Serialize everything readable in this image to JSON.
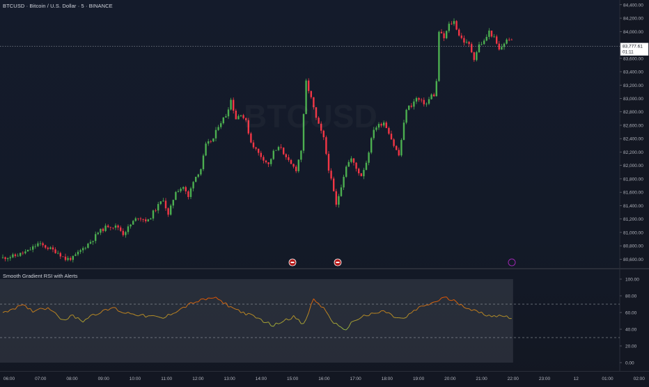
{
  "header": {
    "title": "BTCUSD · Bitcoin / U.S. Dollar · 5 · BINANCE",
    "watermark": "BTCUSD"
  },
  "price_axis": {
    "ticks": [
      "84,400.00",
      "84,200.00",
      "84,000.00",
      "83,600.00",
      "83,400.00",
      "83,200.00",
      "83,000.00",
      "82,800.00",
      "82,600.00",
      "82,400.00",
      "82,200.00",
      "82,000.00",
      "81,800.00",
      "81,600.00",
      "81,400.00",
      "81,200.00",
      "81,000.00",
      "80,800.00",
      "80,600.00"
    ],
    "last_price": "83,777.61",
    "countdown": "01:11"
  },
  "time_axis": {
    "ticks": [
      "06:00",
      "07:00",
      "08:00",
      "09:00",
      "10:00",
      "11:00",
      "12:00",
      "13:00",
      "14:00",
      "15:00",
      "16:00",
      "17:00",
      "18:00",
      "19:00",
      "20:00",
      "21:00",
      "22:00",
      "23:00",
      "12",
      "01:00",
      "02:00"
    ]
  },
  "rsi": {
    "title": "Smooth Gradient RSI with Alerts",
    "ticks": [
      "100.00",
      "80.00",
      "60.00",
      "40.00",
      "20.00",
      "0.00"
    ]
  },
  "colors": {
    "up": "#4caf50",
    "down": "#f23645",
    "rsi_high": "#e65100",
    "rsi_low": "#8bc34a"
  },
  "chart_data": [
    {
      "type": "candlestick",
      "ylim": [
        80500,
        84450
      ],
      "x": [
        "06:00",
        "07:00",
        "08:00",
        "09:00",
        "10:00",
        "11:00",
        "12:00",
        "13:00",
        "14:00",
        "15:00",
        "16:00",
        "17:00",
        "18:00",
        "19:00",
        "20:00",
        "21:00",
        "22:00",
        "23:00"
      ],
      "close_path": [
        [
          0,
          80620
        ],
        [
          5,
          80650
        ],
        [
          10,
          80720
        ],
        [
          14,
          80830
        ],
        [
          18,
          80770
        ],
        [
          22,
          80700
        ],
        [
          25,
          80600
        ],
        [
          28,
          80620
        ],
        [
          32,
          80760
        ],
        [
          36,
          80900
        ],
        [
          38,
          81000
        ],
        [
          42,
          81100
        ],
        [
          46,
          81080
        ],
        [
          48,
          80980
        ],
        [
          52,
          81160
        ],
        [
          54,
          81230
        ],
        [
          58,
          81170
        ],
        [
          60,
          81300
        ],
        [
          64,
          81500
        ],
        [
          66,
          81250
        ],
        [
          69,
          81620
        ],
        [
          72,
          81680
        ],
        [
          74,
          81520
        ],
        [
          76,
          81780
        ],
        [
          79,
          81950
        ],
        [
          81,
          82300
        ],
        [
          84,
          82400
        ],
        [
          86,
          82600
        ],
        [
          89,
          82750
        ],
        [
          91,
          82980
        ],
        [
          93,
          82700
        ],
        [
          95,
          82780
        ],
        [
          97,
          82650
        ],
        [
          99,
          82350
        ],
        [
          102,
          82180
        ],
        [
          104,
          82100
        ],
        [
          106,
          82010
        ],
        [
          108,
          82200
        ],
        [
          111,
          82280
        ],
        [
          113,
          82100
        ],
        [
          115,
          82010
        ],
        [
          117,
          81940
        ],
        [
          119,
          82230
        ],
        [
          121,
          83250
        ],
        [
          123,
          83000
        ],
        [
          125,
          82700
        ],
        [
          128,
          82400
        ],
        [
          130,
          81950
        ],
        [
          132,
          81600
        ],
        [
          133,
          81400
        ],
        [
          135,
          81700
        ],
        [
          137,
          82000
        ],
        [
          139,
          82100
        ],
        [
          141,
          81950
        ],
        [
          143,
          81850
        ],
        [
          145,
          82050
        ],
        [
          148,
          82550
        ],
        [
          150,
          82600
        ],
        [
          152,
          82650
        ],
        [
          154,
          82500
        ],
        [
          156,
          82300
        ],
        [
          158,
          82150
        ],
        [
          161,
          82850
        ],
        [
          163,
          82900
        ],
        [
          165,
          83000
        ],
        [
          167,
          82950
        ],
        [
          169,
          82920
        ],
        [
          171,
          83050
        ],
        [
          172,
          83050
        ],
        [
          173,
          83250
        ],
        [
          174,
          84000
        ],
        [
          176,
          83900
        ],
        [
          178,
          84100
        ],
        [
          180,
          84150
        ],
        [
          182,
          83950
        ],
        [
          184,
          83850
        ],
        [
          186,
          83800
        ],
        [
          188,
          83600
        ],
        [
          190,
          83800
        ],
        [
          192,
          83850
        ],
        [
          194,
          84000
        ],
        [
          196,
          83900
        ],
        [
          198,
          83720
        ],
        [
          200,
          83830
        ],
        [
          202,
          83900
        ],
        [
          203,
          83850
        ]
      ]
    },
    {
      "type": "line",
      "title": "Smooth Gradient RSI with Alerts",
      "ylim": [
        0,
        100
      ],
      "bands": [
        30,
        70
      ],
      "values": [
        [
          0,
          60
        ],
        [
          4,
          65
        ],
        [
          8,
          68
        ],
        [
          12,
          62
        ],
        [
          16,
          66
        ],
        [
          20,
          63
        ],
        [
          24,
          51
        ],
        [
          28,
          56
        ],
        [
          32,
          50
        ],
        [
          36,
          58
        ],
        [
          40,
          61
        ],
        [
          44,
          66
        ],
        [
          48,
          60
        ],
        [
          52,
          59
        ],
        [
          56,
          56
        ],
        [
          60,
          55
        ],
        [
          64,
          53
        ],
        [
          68,
          60
        ],
        [
          72,
          66
        ],
        [
          76,
          72
        ],
        [
          80,
          75
        ],
        [
          84,
          78
        ],
        [
          88,
          72
        ],
        [
          92,
          65
        ],
        [
          96,
          60
        ],
        [
          100,
          55
        ],
        [
          104,
          50
        ],
        [
          108,
          44
        ],
        [
          112,
          51
        ],
        [
          116,
          55
        ],
        [
          120,
          45
        ],
        [
          124,
          76
        ],
        [
          128,
          65
        ],
        [
          132,
          48
        ],
        [
          136,
          38
        ],
        [
          140,
          50
        ],
        [
          144,
          56
        ],
        [
          148,
          58
        ],
        [
          152,
          62
        ],
        [
          156,
          55
        ],
        [
          160,
          52
        ],
        [
          164,
          62
        ],
        [
          168,
          68
        ],
        [
          172,
          72
        ],
        [
          176,
          78
        ],
        [
          180,
          74
        ],
        [
          184,
          68
        ],
        [
          188,
          62
        ],
        [
          192,
          58
        ],
        [
          196,
          56
        ],
        [
          200,
          56
        ],
        [
          203,
          54
        ]
      ]
    }
  ]
}
